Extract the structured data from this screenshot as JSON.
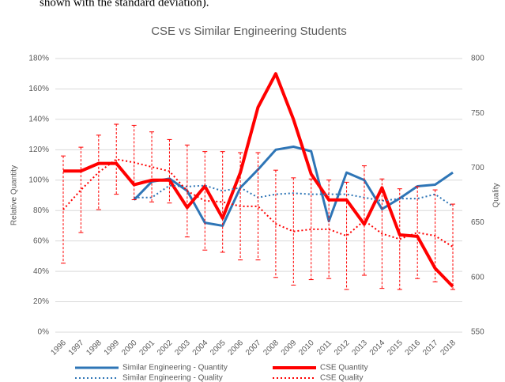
{
  "caption": "shown with the standard deviation).",
  "chart_data": {
    "type": "line",
    "title": "CSE vs Similar Engineering Students",
    "ylabel": "Relative Quantity",
    "y2label": "Quality",
    "categories": [
      "1996",
      "1997",
      "1998",
      "1999",
      "2000",
      "2001",
      "2002",
      "2003",
      "2004",
      "2005",
      "2006",
      "2007",
      "2008",
      "2009",
      "2010",
      "2011",
      "2012",
      "2013",
      "2014",
      "2015",
      "2016",
      "2017",
      "2018"
    ],
    "ylim": [
      0,
      180
    ],
    "yticks": [
      {
        "value": 0,
        "label": "0%"
      },
      {
        "value": 20,
        "label": "20%"
      },
      {
        "value": 40,
        "label": "40%"
      },
      {
        "value": 60,
        "label": "60%"
      },
      {
        "value": 80,
        "label": "80%"
      },
      {
        "value": 100,
        "label": "100%"
      },
      {
        "value": 120,
        "label": "120%"
      },
      {
        "value": 140,
        "label": "140%"
      },
      {
        "value": 160,
        "label": "160%"
      },
      {
        "value": 180,
        "label": "180%"
      }
    ],
    "y2lim": [
      550,
      800
    ],
    "y2ticks": [
      550,
      600,
      650,
      700,
      750,
      800
    ],
    "grid": true,
    "series": [
      {
        "name": "Similar Engineering - Quantity",
        "color": "#2e75b6",
        "dash": "solid",
        "width": 3,
        "values": [
          null,
          null,
          null,
          null,
          87,
          99,
          101,
          93,
          72,
          70,
          95,
          107,
          120,
          122,
          119,
          73,
          105,
          100,
          81,
          88,
          96,
          97,
          105
        ]
      },
      {
        "name": "CSE Quantity",
        "color": "#ff0000",
        "dash": "solid",
        "width": 4,
        "values": [
          106,
          106,
          111,
          111,
          97,
          100,
          100,
          82,
          96,
          75,
          105,
          148,
          170,
          140,
          104,
          87,
          87,
          71,
          95,
          64,
          63,
          42,
          30
        ]
      },
      {
        "name": "Similar Engineering - Quality",
        "color": "#2e75b6",
        "dash": "dotted",
        "width": 2,
        "axis": "y2",
        "values": [
          null,
          null,
          null,
          null,
          673,
          673,
          684,
          683,
          684,
          679,
          682,
          673,
          676,
          677,
          676,
          676,
          676,
          673,
          670,
          672,
          672,
          676,
          665
        ]
      },
      {
        "name": "CSE Quality",
        "color": "#ff0000",
        "dash": "dotted",
        "width": 2,
        "axis": "y2",
        "values": [
          662,
          680,
          696,
          708,
          705,
          701,
          697,
          679,
          670,
          669,
          665,
          665,
          649,
          642,
          644,
          644,
          638,
          652,
          640,
          635,
          641,
          638,
          628
        ],
        "errors": [
          49,
          39,
          34,
          32,
          34,
          32,
          29,
          42,
          45,
          46,
          49,
          49,
          49,
          49,
          46,
          45,
          49,
          50,
          50,
          46,
          42,
          42,
          39
        ]
      }
    ]
  }
}
